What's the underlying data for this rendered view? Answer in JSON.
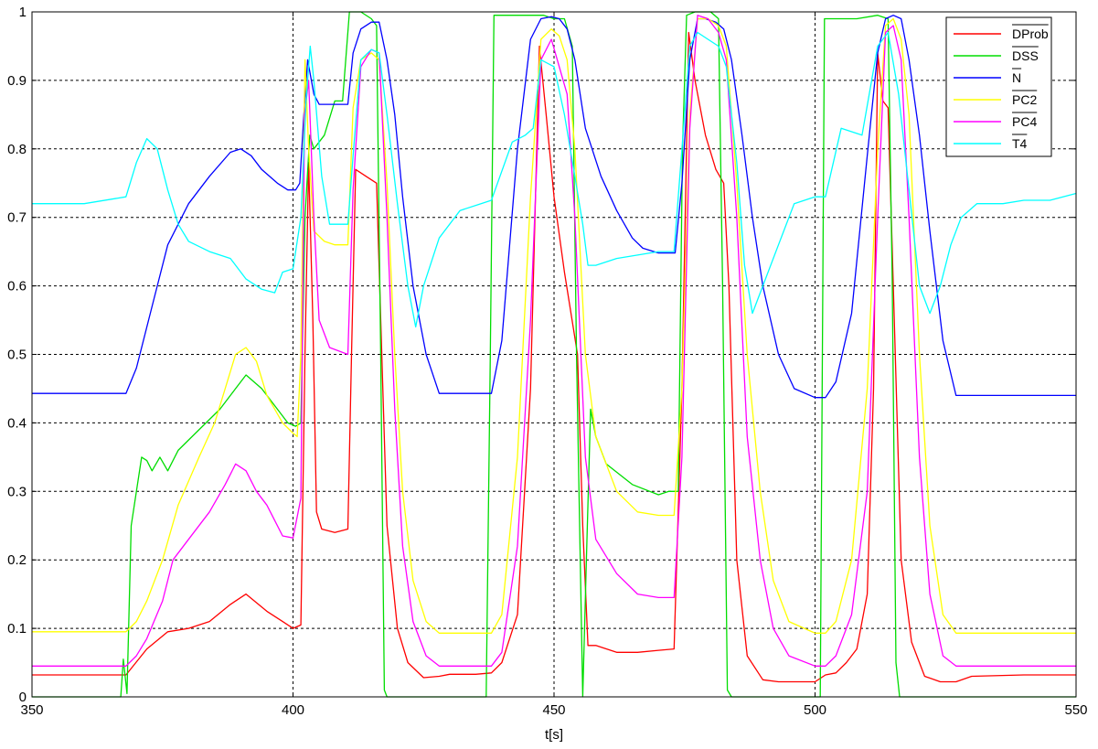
{
  "chart_data": {
    "type": "line",
    "title": "",
    "xlabel": "t[s]",
    "ylabel": "",
    "xlim": [
      350,
      550
    ],
    "ylim": [
      0,
      1
    ],
    "x_ticks": [
      350,
      400,
      450,
      500,
      550
    ],
    "y_ticks": [
      0,
      0.1,
      0.2,
      0.3,
      0.4,
      0.5,
      0.6,
      0.7,
      0.8,
      0.9,
      1
    ],
    "y_tick_labels": [
      "0",
      "0.1",
      "0.2",
      "0.3",
      "0.4",
      "0.5",
      "0.6",
      "0.7",
      "0.8",
      "0.9",
      "1"
    ],
    "grid": true,
    "legend_position": "top-right",
    "series": [
      {
        "name": "DProb",
        "color": "#ff0000",
        "overline": true,
        "x": [
          350,
          368,
          372,
          376,
          380,
          384,
          388,
          391,
          395,
          398,
          400,
          401.5,
          402.3,
          403,
          403.8,
          404.5,
          405.5,
          408,
          410.5,
          411.2,
          412,
          414,
          416,
          418,
          420,
          422,
          425,
          428,
          430,
          435,
          438,
          440,
          443,
          445.5,
          447.2,
          448.5,
          450,
          452,
          454.5,
          455.5,
          456.5,
          458,
          462,
          466,
          470,
          473,
          474.5,
          475.8,
          477,
          479,
          481,
          482.5,
          483.5,
          485,
          487,
          490,
          493,
          500,
          502,
          504,
          506,
          508,
          510,
          511.2,
          512,
          513,
          514,
          515,
          516.5,
          518.5,
          521,
          524,
          527,
          530,
          540,
          550
        ],
        "y": [
          0.032,
          0.032,
          0.07,
          0.095,
          0.1,
          0.11,
          0.135,
          0.15,
          0.125,
          0.11,
          0.1,
          0.105,
          0.5,
          0.78,
          0.55,
          0.27,
          0.245,
          0.24,
          0.245,
          0.5,
          0.77,
          0.76,
          0.75,
          0.25,
          0.1,
          0.05,
          0.028,
          0.03,
          0.033,
          0.033,
          0.035,
          0.05,
          0.12,
          0.45,
          0.95,
          0.85,
          0.73,
          0.62,
          0.5,
          0.25,
          0.075,
          0.075,
          0.065,
          0.065,
          0.068,
          0.07,
          0.45,
          0.97,
          0.9,
          0.82,
          0.77,
          0.75,
          0.6,
          0.2,
          0.06,
          0.025,
          0.022,
          0.022,
          0.032,
          0.035,
          0.05,
          0.07,
          0.15,
          0.45,
          0.94,
          0.87,
          0.86,
          0.6,
          0.2,
          0.08,
          0.03,
          0.022,
          0.022,
          0.03,
          0.032,
          0.032
        ]
      },
      {
        "name": "DSS",
        "color": "#00dd00",
        "overline": true,
        "x": [
          350,
          367,
          367.5,
          368.2,
          369,
          371,
          372,
          373,
          374.5,
          376,
          378,
          382,
          386,
          389,
          391,
          394,
          397,
          399,
          400.5,
          401.5,
          402.3,
          403.2,
          404,
          406,
          408,
          409.5,
          410.8,
          413,
          415,
          416,
          416.8,
          417.5,
          418,
          435,
          437,
          437.8,
          438.5,
          440,
          448,
          450,
          452,
          453.5,
          454.3,
          455.5,
          456.2,
          457,
          458,
          460,
          465,
          470,
          472,
          473.8,
          474.6,
          475.4,
          477,
          480,
          481.5,
          482.3,
          483.2,
          484,
          500,
          501,
          501.8,
          502.8,
          504,
          508,
          512,
          514,
          514.8,
          515.5,
          516.2,
          517,
          550
        ],
        "y": [
          0,
          0,
          0.055,
          0.005,
          0.25,
          0.35,
          0.345,
          0.33,
          0.35,
          0.33,
          0.36,
          0.39,
          0.42,
          0.45,
          0.47,
          0.45,
          0.42,
          0.4,
          0.395,
          0.4,
          0.7,
          0.82,
          0.8,
          0.82,
          0.87,
          0.87,
          1.0,
          1.0,
          0.99,
          0.98,
          0.5,
          0.01,
          0,
          0,
          0,
          0.5,
          0.995,
          0.995,
          0.995,
          0.99,
          0.99,
          0.95,
          0.5,
          0,
          0.2,
          0.42,
          0.38,
          0.34,
          0.31,
          0.295,
          0.3,
          0.3,
          0.8,
          0.995,
          1.0,
          1.0,
          0.99,
          0.6,
          0.01,
          0,
          0,
          0,
          0.99,
          0.99,
          0.99,
          0.99,
          0.995,
          0.99,
          0.6,
          0.05,
          0,
          0,
          0
        ]
      },
      {
        "name": "N",
        "color": "#0000ff",
        "overline": true,
        "x": [
          350,
          368,
          370,
          373,
          376,
          380,
          384,
          388,
          390,
          392,
          394,
          397,
          399,
          400.5,
          401.3,
          402,
          402.8,
          404,
          405,
          408,
          410.5,
          411.5,
          413,
          415,
          416.5,
          418,
          419.5,
          421,
          423,
          425.5,
          428,
          430,
          435,
          438,
          440,
          443,
          445.5,
          447.5,
          449.5,
          451,
          452.5,
          454,
          456,
          459,
          462,
          465,
          467,
          470,
          473.2,
          474.5,
          476,
          477.5,
          479,
          481,
          482.5,
          484,
          486,
          488,
          490,
          493,
          496,
          500,
          502,
          504,
          507,
          510,
          512,
          513.5,
          515,
          516.5,
          518,
          520,
          522,
          524.5,
          527,
          530,
          550
        ],
        "y": [
          0.443,
          0.443,
          0.48,
          0.57,
          0.66,
          0.72,
          0.76,
          0.795,
          0.8,
          0.79,
          0.77,
          0.75,
          0.74,
          0.74,
          0.75,
          0.84,
          0.93,
          0.88,
          0.865,
          0.865,
          0.865,
          0.94,
          0.975,
          0.985,
          0.985,
          0.93,
          0.85,
          0.73,
          0.6,
          0.5,
          0.443,
          0.443,
          0.443,
          0.443,
          0.52,
          0.8,
          0.96,
          0.99,
          0.993,
          0.99,
          0.975,
          0.93,
          0.83,
          0.76,
          0.71,
          0.67,
          0.655,
          0.648,
          0.648,
          0.75,
          0.93,
          0.99,
          0.99,
          0.985,
          0.975,
          0.93,
          0.82,
          0.7,
          0.6,
          0.5,
          0.45,
          0.437,
          0.437,
          0.46,
          0.56,
          0.79,
          0.94,
          0.99,
          0.995,
          0.99,
          0.93,
          0.82,
          0.68,
          0.52,
          0.44,
          0.44,
          0.44
        ]
      },
      {
        "name": "PC2",
        "color": "#ffff00",
        "overline": true,
        "x": [
          350,
          368,
          370,
          372,
          375,
          378,
          382,
          385,
          387,
          389,
          391,
          393,
          395,
          398,
          400,
          400.8,
          401.5,
          402.3,
          403,
          404,
          406,
          408,
          410.5,
          411.5,
          413,
          415,
          416.5,
          418,
          419.5,
          421,
          423,
          425.5,
          428,
          430,
          435,
          438,
          440,
          443,
          445.5,
          447.5,
          449.5,
          451,
          452.5,
          454,
          456,
          458,
          462,
          466,
          470,
          473,
          474.5,
          476,
          477.5,
          479.5,
          481.5,
          483,
          485,
          487,
          489.5,
          492,
          495,
          500,
          502,
          504,
          507,
          510,
          512,
          513.5,
          515,
          516.5,
          518,
          520,
          522,
          524.5,
          527,
          530,
          550
        ],
        "y": [
          0.095,
          0.095,
          0.11,
          0.14,
          0.2,
          0.28,
          0.35,
          0.4,
          0.45,
          0.5,
          0.51,
          0.49,
          0.44,
          0.4,
          0.385,
          0.38,
          0.5,
          0.93,
          0.8,
          0.68,
          0.665,
          0.66,
          0.66,
          0.86,
          0.93,
          0.94,
          0.93,
          0.75,
          0.5,
          0.3,
          0.17,
          0.11,
          0.093,
          0.093,
          0.093,
          0.093,
          0.12,
          0.35,
          0.73,
          0.96,
          0.975,
          0.965,
          0.93,
          0.8,
          0.5,
          0.38,
          0.3,
          0.27,
          0.265,
          0.265,
          0.45,
          0.85,
          0.99,
          0.99,
          0.98,
          0.95,
          0.75,
          0.5,
          0.3,
          0.17,
          0.11,
          0.093,
          0.093,
          0.11,
          0.2,
          0.45,
          0.8,
          0.98,
          0.99,
          0.96,
          0.85,
          0.5,
          0.25,
          0.12,
          0.093,
          0.093,
          0.093
        ]
      },
      {
        "name": "PC4",
        "color": "#ff00ff",
        "overline": true,
        "x": [
          350,
          368,
          370,
          372,
          375,
          377,
          380,
          384,
          387,
          389,
          391,
          393,
          395,
          397,
          398,
          400,
          401.5,
          402.2,
          403,
          404,
          405,
          407,
          410.5,
          411.5,
          413,
          415,
          416.5,
          418,
          419.5,
          421,
          423,
          425.5,
          428,
          430,
          435,
          438,
          440,
          443,
          445.5,
          447.5,
          449.5,
          451,
          452.5,
          454,
          456,
          458,
          462,
          466,
          470,
          473,
          474.5,
          476,
          477.5,
          479.5,
          481.5,
          483,
          485,
          487,
          489.5,
          492,
          495,
          500,
          502,
          504,
          507,
          510,
          512,
          513.5,
          515,
          516.5,
          518,
          520,
          522,
          524.5,
          527,
          530,
          550
        ],
        "y": [
          0.045,
          0.045,
          0.06,
          0.085,
          0.14,
          0.2,
          0.23,
          0.27,
          0.31,
          0.34,
          0.33,
          0.3,
          0.28,
          0.25,
          0.235,
          0.232,
          0.29,
          0.85,
          0.9,
          0.7,
          0.55,
          0.51,
          0.5,
          0.74,
          0.92,
          0.945,
          0.94,
          0.7,
          0.42,
          0.22,
          0.11,
          0.06,
          0.045,
          0.045,
          0.045,
          0.045,
          0.065,
          0.22,
          0.55,
          0.93,
          0.96,
          0.92,
          0.88,
          0.7,
          0.35,
          0.23,
          0.18,
          0.15,
          0.145,
          0.145,
          0.35,
          0.83,
          0.995,
          0.99,
          0.97,
          0.93,
          0.7,
          0.38,
          0.2,
          0.1,
          0.06,
          0.045,
          0.045,
          0.06,
          0.12,
          0.3,
          0.7,
          0.97,
          0.98,
          0.93,
          0.7,
          0.35,
          0.15,
          0.06,
          0.045,
          0.045,
          0.045
        ]
      },
      {
        "name": "T4",
        "color": "#00ffff",
        "overline": true,
        "x": [
          350,
          360,
          368,
          370,
          372,
          374,
          376,
          378,
          380,
          384,
          388,
          391,
          394,
          396.5,
          398,
          400,
          401.5,
          402.5,
          403.3,
          404,
          405.5,
          407,
          410.5,
          411.5,
          413,
          415,
          416.5,
          418,
          420,
          422,
          423.5,
          425,
          428,
          432,
          436,
          438,
          442,
          444.5,
          446,
          447.5,
          450,
          452,
          454,
          455.5,
          456.5,
          458,
          462,
          466,
          470,
          473,
          474.5,
          476,
          477.5,
          479.5,
          481.5,
          483,
          485,
          486.5,
          488,
          490,
          493,
          496,
          500,
          502,
          505,
          509,
          512,
          514,
          516,
          518,
          520,
          522,
          524,
          526,
          528,
          531,
          536,
          540,
          545,
          550
        ],
        "y": [
          0.72,
          0.72,
          0.73,
          0.78,
          0.815,
          0.8,
          0.74,
          0.69,
          0.665,
          0.65,
          0.64,
          0.61,
          0.595,
          0.59,
          0.62,
          0.625,
          0.7,
          0.87,
          0.95,
          0.9,
          0.76,
          0.69,
          0.69,
          0.79,
          0.93,
          0.945,
          0.94,
          0.85,
          0.72,
          0.6,
          0.54,
          0.6,
          0.67,
          0.71,
          0.72,
          0.725,
          0.81,
          0.82,
          0.83,
          0.93,
          0.92,
          0.85,
          0.76,
          0.69,
          0.63,
          0.63,
          0.64,
          0.645,
          0.65,
          0.65,
          0.8,
          0.95,
          0.97,
          0.96,
          0.95,
          0.92,
          0.78,
          0.63,
          0.56,
          0.6,
          0.66,
          0.72,
          0.73,
          0.73,
          0.83,
          0.82,
          0.95,
          0.97,
          0.88,
          0.74,
          0.6,
          0.56,
          0.6,
          0.66,
          0.7,
          0.72,
          0.72,
          0.725,
          0.725,
          0.735
        ]
      }
    ]
  }
}
